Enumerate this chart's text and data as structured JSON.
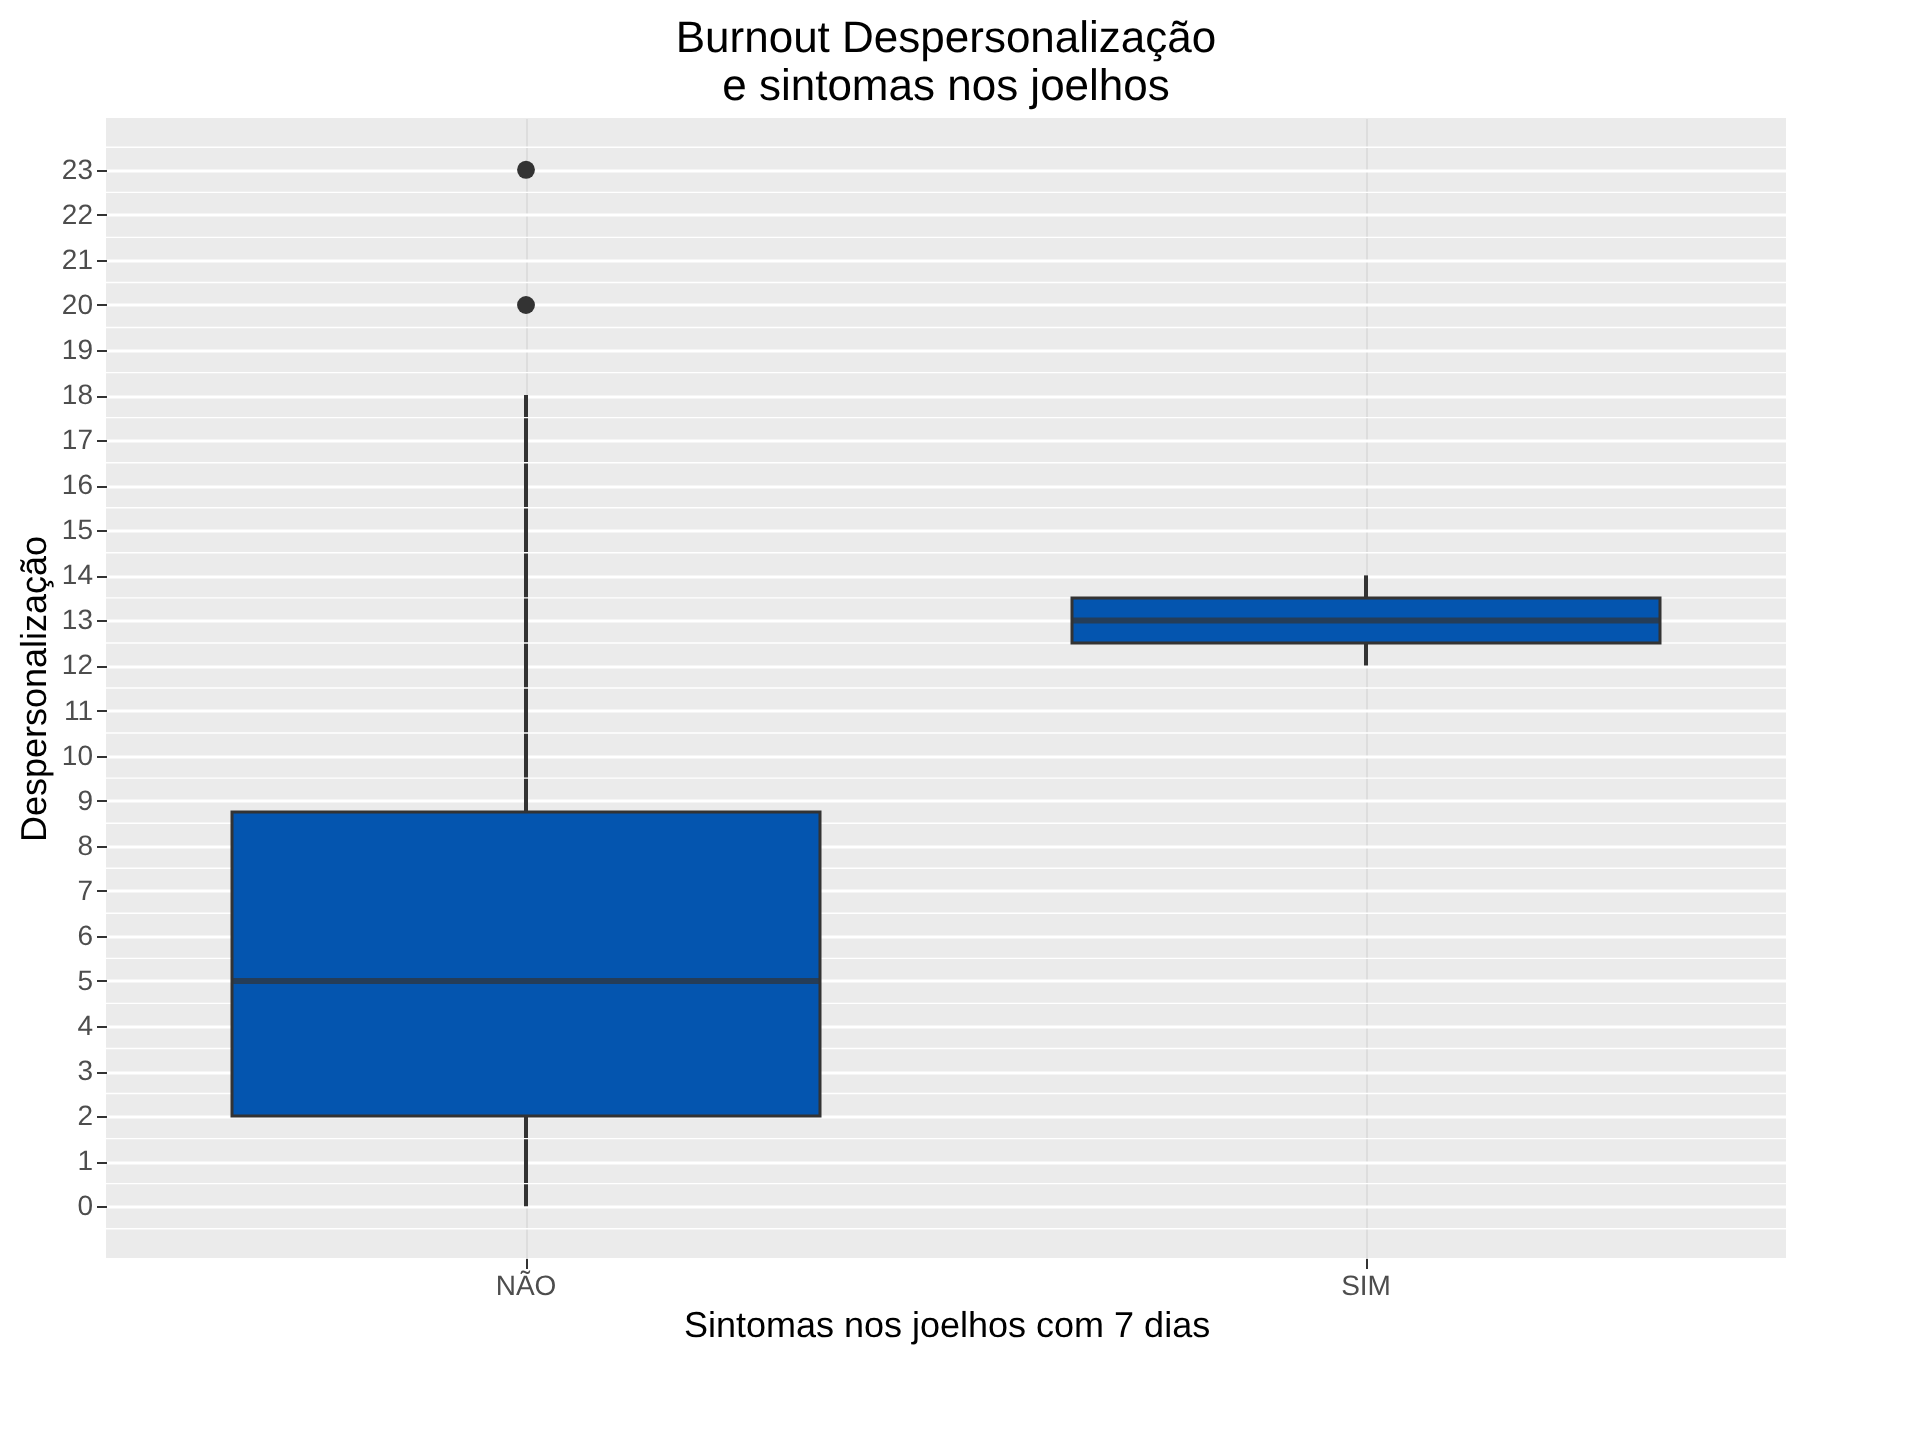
{
  "chart_data": {
    "type": "box",
    "title": "Burnout Despersonalização e sintomas nos joelhos",
    "xlabel": "Sintomas nos joelhos com 7 dias",
    "ylabel": "Despersonalização",
    "categories": [
      "NÃO",
      "SIM"
    ],
    "color": "#0455af",
    "boxes": [
      {
        "low": 0,
        "q1": 2,
        "median": 5,
        "q3": 8.75,
        "high": 18,
        "outliers": [
          20,
          23
        ]
      },
      {
        "low": 12,
        "q1": 12.5,
        "median": 13,
        "q3": 13.5,
        "high": 14
      }
    ],
    "ylim": [
      -1.15,
      24.15
    ],
    "yticks": [
      0,
      1,
      2,
      3,
      4,
      5,
      6,
      7,
      8,
      9,
      10,
      11,
      12,
      13,
      14,
      15,
      16,
      17,
      18,
      19,
      20,
      21,
      22,
      23
    ],
    "grid": true
  }
}
